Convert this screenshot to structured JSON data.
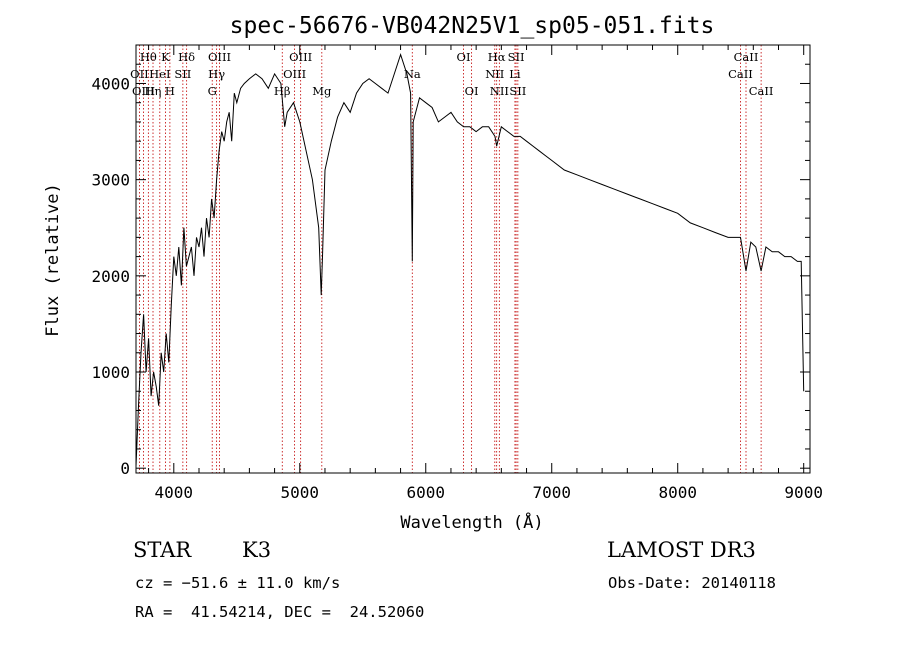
{
  "chart_data": {
    "type": "line",
    "title": "spec-56676-VB042N25V1_sp05-051.fits",
    "xlabel": "Wavelength (Å)",
    "ylabel": "Flux (relative)",
    "xlim": [
      3700,
      9050
    ],
    "ylim": [
      -50,
      4400
    ],
    "xticks": [
      4000,
      5000,
      6000,
      7000,
      8000,
      9000
    ],
    "yticks": [
      0,
      1000,
      2000,
      3000,
      4000
    ],
    "series": [
      {
        "name": "spectrum",
        "x": [
          3700,
          3720,
          3740,
          3760,
          3780,
          3800,
          3820,
          3840,
          3860,
          3880,
          3900,
          3920,
          3940,
          3960,
          3980,
          4000,
          4020,
          4040,
          4060,
          4080,
          4100,
          4120,
          4140,
          4160,
          4180,
          4200,
          4220,
          4240,
          4260,
          4280,
          4300,
          4320,
          4340,
          4360,
          4380,
          4400,
          4420,
          4440,
          4460,
          4480,
          4500,
          4530,
          4560,
          4600,
          4650,
          4700,
          4750,
          4800,
          4850,
          4880,
          4900,
          4950,
          5000,
          5050,
          5100,
          5150,
          5170,
          5180,
          5200,
          5250,
          5300,
          5350,
          5400,
          5450,
          5500,
          5550,
          5600,
          5650,
          5700,
          5750,
          5800,
          5850,
          5880,
          5893,
          5900,
          5950,
          6000,
          6050,
          6100,
          6150,
          6200,
          6250,
          6300,
          6350,
          6400,
          6450,
          6500,
          6550,
          6563,
          6600,
          6650,
          6700,
          6750,
          6800,
          6850,
          6900,
          6950,
          7000,
          7100,
          7200,
          7300,
          7400,
          7500,
          7600,
          7700,
          7800,
          7900,
          8000,
          8100,
          8200,
          8300,
          8400,
          8498,
          8542,
          8580,
          8620,
          8662,
          8700,
          8750,
          8800,
          8850,
          8900,
          8950,
          8980,
          9000
        ],
        "y": [
          20,
          650,
          1200,
          1600,
          1000,
          1350,
          750,
          1000,
          850,
          650,
          1200,
          1000,
          1400,
          1100,
          1700,
          2200,
          2000,
          2300,
          1900,
          2500,
          2100,
          2200,
          2300,
          2000,
          2400,
          2300,
          2500,
          2200,
          2600,
          2400,
          2800,
          2600,
          3000,
          3300,
          3500,
          3400,
          3600,
          3700,
          3400,
          3900,
          3800,
          3950,
          4000,
          4050,
          4100,
          4050,
          3950,
          4100,
          4000,
          3550,
          3700,
          3800,
          3600,
          3300,
          3000,
          2500,
          1800,
          2200,
          3100,
          3400,
          3650,
          3800,
          3700,
          3900,
          4000,
          4050,
          4000,
          3950,
          3900,
          4100,
          4300,
          4100,
          3900,
          2150,
          3600,
          3850,
          3800,
          3750,
          3600,
          3650,
          3700,
          3600,
          3550,
          3550,
          3500,
          3550,
          3550,
          3450,
          3350,
          3550,
          3500,
          3450,
          3450,
          3400,
          3350,
          3300,
          3250,
          3200,
          3100,
          3050,
          3000,
          2950,
          2900,
          2850,
          2800,
          2750,
          2700,
          2650,
          2550,
          2500,
          2450,
          2400,
          2400,
          2050,
          2350,
          2300,
          2050,
          2300,
          2250,
          2250,
          2200,
          2200,
          2150,
          2150,
          800
        ]
      }
    ],
    "line_annotations": [
      {
        "label": "Hθ",
        "x": 3798,
        "row": 0
      },
      {
        "label": "OII",
        "x": 3727,
        "row": 1
      },
      {
        "label": "OIII",
        "x": 3760,
        "row": 2
      },
      {
        "label": "Hη",
        "x": 3835,
        "row": 2
      },
      {
        "label": "HeI",
        "x": 3889,
        "row": 1
      },
      {
        "label": "K",
        "x": 3934,
        "row": 0
      },
      {
        "label": "H",
        "x": 3969,
        "row": 2
      },
      {
        "label": "SII",
        "x": 4072,
        "row": 1
      },
      {
        "label": "Hδ",
        "x": 4102,
        "row": 0
      },
      {
        "label": "OIII",
        "x": 4363,
        "row": 0
      },
      {
        "label": "Hγ",
        "x": 4340,
        "row": 1
      },
      {
        "label": "G",
        "x": 4305,
        "row": 2
      },
      {
        "label": "OIII",
        "x": 5007,
        "row": 0
      },
      {
        "label": "OIII",
        "x": 4959,
        "row": 1
      },
      {
        "label": "Hβ",
        "x": 4861,
        "row": 2
      },
      {
        "label": "Mg",
        "x": 5175,
        "row": 2
      },
      {
        "label": "Na",
        "x": 5893,
        "row": 1
      },
      {
        "label": "OI",
        "x": 6300,
        "row": 0
      },
      {
        "label": "OI",
        "x": 6364,
        "row": 2
      },
      {
        "label": "Hα",
        "x": 6563,
        "row": 0
      },
      {
        "label": "NII",
        "x": 6548,
        "row": 1
      },
      {
        "label": "NII",
        "x": 6584,
        "row": 2
      },
      {
        "label": "SII",
        "x": 6717,
        "row": 0
      },
      {
        "label": "Li",
        "x": 6708,
        "row": 1
      },
      {
        "label": "SII",
        "x": 6731,
        "row": 2
      },
      {
        "label": "CaII",
        "x": 8498,
        "row": 1
      },
      {
        "label": "CaII",
        "x": 8542,
        "row": 0
      },
      {
        "label": "CaII",
        "x": 8662,
        "row": 2
      }
    ],
    "grid": false,
    "colors": {
      "spectrum": "#000000",
      "line_markers": "#c00000",
      "axes": "#000000"
    }
  },
  "info": {
    "object_class": "STAR",
    "subclass": "K3",
    "survey": "LAMOST DR3",
    "redshift_text": "cz = −51.6 ± 11.0 km/s",
    "obs_date_text": "Obs-Date: 20140118",
    "coords_text": "RA =  41.54214, DEC =  24.52060"
  }
}
